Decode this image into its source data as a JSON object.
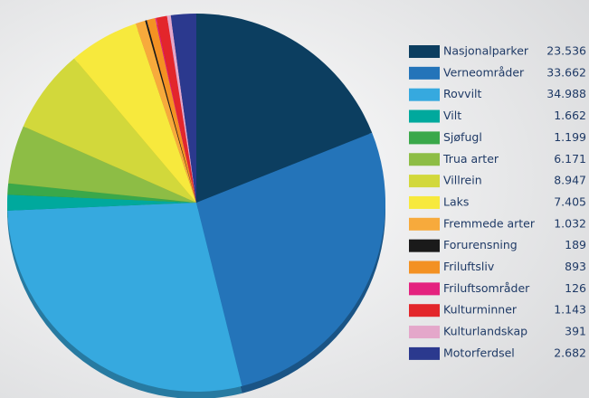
{
  "chart_data": {
    "type": "pie",
    "categories": [
      "Nasjonalparker",
      "Verneområder",
      "Rovvilt",
      "Vilt",
      "Sjøfugl",
      "Trua arter",
      "Villrein",
      "Laks",
      "Fremmede arter",
      "Forurensning",
      "Friluftsliv",
      "Friluftsområder",
      "Kulturminner",
      "Kulturlandskap",
      "Motorferdsel"
    ],
    "values": [
      23536,
      33662,
      34988,
      1662,
      1199,
      6171,
      8947,
      7405,
      1032,
      189,
      893,
      126,
      1143,
      391,
      2682
    ],
    "value_labels": [
      "23.536",
      "33.662",
      "34.988",
      "1.662",
      "1.199",
      "6.171",
      "8.947",
      "7.405",
      "1.032",
      "189",
      "893",
      "126",
      "1.143",
      "391",
      "2.682"
    ],
    "colors": [
      "#0c3e60",
      "#2474b9",
      "#36a9df",
      "#00a99d",
      "#3aa84a",
      "#8dbd45",
      "#d2d83b",
      "#f7e93d",
      "#f7aa3c",
      "#1a1a1a",
      "#f39123",
      "#e4227f",
      "#e3262b",
      "#e4a7ca",
      "#2b398e"
    ],
    "legend": "right"
  }
}
